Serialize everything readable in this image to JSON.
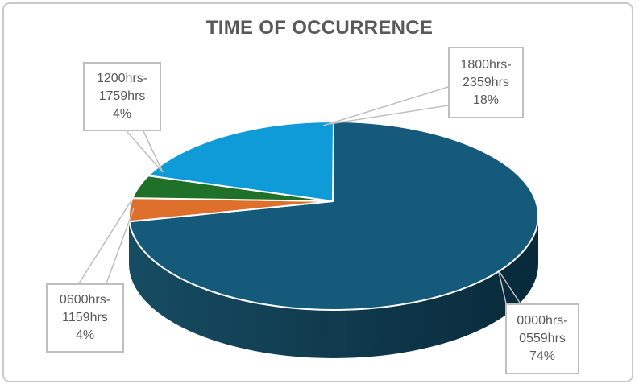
{
  "chart_data": {
    "type": "pie",
    "style": "3d-pie",
    "title": "TIME OF OCCURRENCE",
    "legend": "none",
    "direction": "clockwise",
    "start_angle_deg": 0,
    "unit": "%",
    "categories": [
      "0000hrs-0559hrs",
      "0600hrs-1159hrs",
      "1200hrs-1759hrs",
      "1800hrs-2359hrs"
    ],
    "values": [
      74,
      4,
      4,
      18
    ],
    "slices": [
      {
        "label": "0000hrs-0559hrs",
        "pct": 74,
        "color": "#15597B",
        "callout_lines": [
          "0000hrs-",
          "0559hrs",
          "74%"
        ]
      },
      {
        "label": "0600hrs-1159hrs",
        "pct": 4,
        "color": "#DF702B",
        "callout_lines": [
          "0600hrs-",
          "1159hrs",
          "4%"
        ]
      },
      {
        "label": "1200hrs-1759hrs",
        "pct": 4,
        "color": "#1F7029",
        "callout_lines": [
          "1200hrs-",
          "1759hrs",
          "4%"
        ]
      },
      {
        "label": "1800hrs-2359hrs",
        "pct": 18,
        "color": "#0F9BD7",
        "callout_lines": [
          "1800hrs-",
          "2359hrs",
          "18%"
        ]
      }
    ],
    "colors": {
      "title_text": "#595959",
      "label_text": "#595959",
      "callout_border": "#BFBFBF",
      "frame_border": "#C9C9C9",
      "slice_separator": "#FFFFFF",
      "side_shading": [
        "#164C62",
        "#113C50",
        "#082A3A"
      ]
    }
  }
}
